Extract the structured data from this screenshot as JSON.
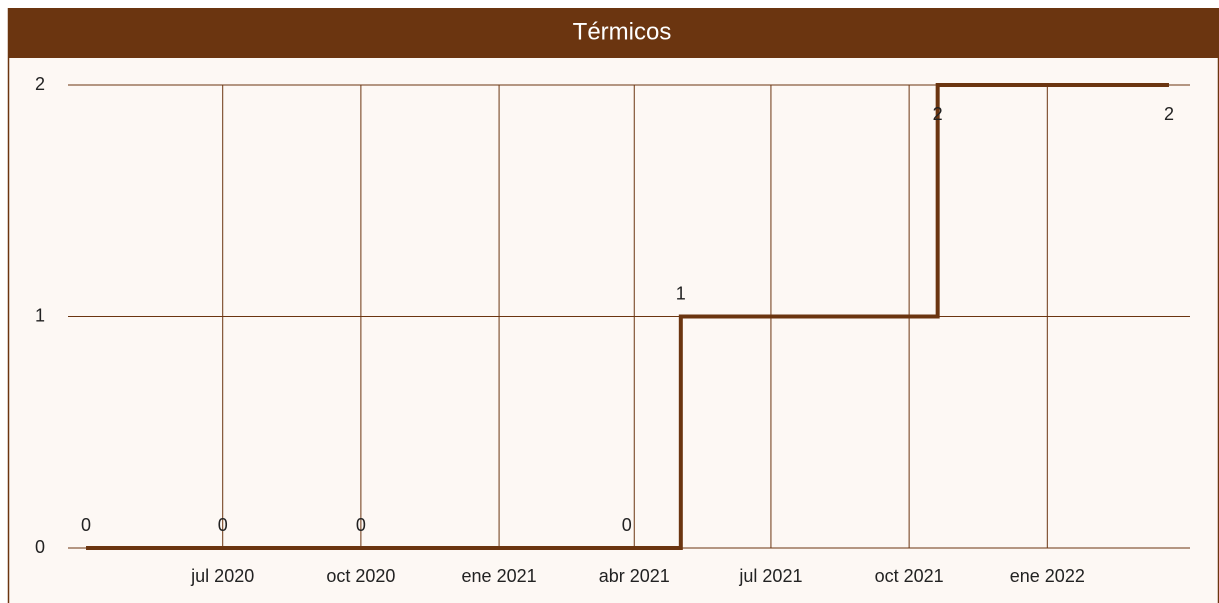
{
  "chart_data": {
    "type": "line",
    "step": true,
    "title": "Térmicos",
    "x": [
      "2020-04-01",
      "2020-07-01",
      "2020-10-01",
      "2021-03-27",
      "2021-05-02",
      "2021-10-20",
      "2022-03-23"
    ],
    "series": [
      {
        "color": "#6b3510",
        "values": [
          0,
          0,
          0,
          0,
          1,
          2,
          2
        ]
      }
    ],
    "xlim": [
      "2020-03-20",
      "2022-04-06"
    ],
    "xticks": [
      {
        "value": "2020-07-01",
        "label": "jul 2020"
      },
      {
        "value": "2020-10-01",
        "label": "oct 2020"
      },
      {
        "value": "2021-01-01",
        "label": "ene 2021"
      },
      {
        "value": "2021-04-01",
        "label": "abr 2021"
      },
      {
        "value": "2021-07-01",
        "label": "jul 2021"
      },
      {
        "value": "2021-10-01",
        "label": "oct 2021"
      },
      {
        "value": "2022-01-01",
        "label": "ene 2022"
      }
    ],
    "ylim": [
      0,
      2
    ],
    "yticks": [
      0,
      1,
      2
    ],
    "grid": true
  }
}
